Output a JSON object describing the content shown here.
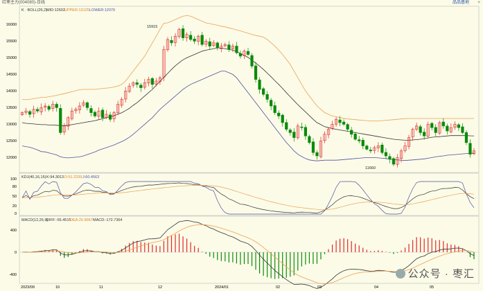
{
  "window": {
    "title": "红枣主力(004080)-日线",
    "right_link": "品品基地",
    "close_glyph": "×"
  },
  "boll_panel": {
    "legend": {
      "name": "K · BOLL(26,2)",
      "mid": "MID:12602",
      "upper": "UPPER:13125",
      "lower": "LOWER:12079"
    },
    "y_ticks": [
      "16000",
      "15500",
      "15000",
      "14500",
      "14000",
      "13500",
      "13000",
      "12500",
      "12000"
    ],
    "annotations": {
      "high": "15915",
      "low": "11660"
    }
  },
  "kdj_panel": {
    "legend": {
      "name": "KDJ(40,16,16)",
      "k": "K:94.3013",
      "d": "D:51.2239",
      "j": "J:60.4563"
    },
    "y_ticks": [
      "100",
      "80",
      "50",
      "20",
      "0"
    ]
  },
  "macd_panel": {
    "legend": {
      "name": "MACD(12,26,9)",
      "diff": "DIFF:-55.4515",
      "dea": "DEA:20.9067",
      "macd": "MACD:-172.7364"
    },
    "y_ticks": [
      "400",
      "0",
      "-400"
    ]
  },
  "x_axis": {
    "labels": [
      "2023/09",
      "10",
      "11",
      "12",
      "2024/01",
      "02",
      "03",
      "04",
      "05"
    ]
  },
  "watermark": "公众号 · 枣汇",
  "colors": {
    "up": "#e02828",
    "down": "#0a8a0a",
    "mid": "#333333",
    "upper": "#f0a050",
    "lower": "#5050a0",
    "bg": "#fbfbe8"
  },
  "chart_data": {
    "type": "candlestick",
    "y_range": [
      11600,
      16200
    ],
    "highlights": {
      "high": 15915,
      "low": 11660
    },
    "close_series": [
      13300,
      13350,
      13250,
      13400,
      13350,
      13450,
      13500,
      13400,
      13550,
      13450,
      12700,
      12900,
      13150,
      13350,
      13400,
      13500,
      13600,
      13450,
      13300,
      13200,
      13350,
      13150,
      13250,
      13100,
      13300,
      13550,
      13700,
      13950,
      14100,
      14200,
      14150,
      14050,
      14200,
      14300,
      14150,
      14250,
      14350,
      15200,
      15500,
      15400,
      15600,
      15800,
      15550,
      15650,
      15500,
      15450,
      15600,
      15350,
      15450,
      15300,
      15400,
      15250,
      15300,
      15350,
      15200,
      15300,
      15100,
      15000,
      15150,
      15050,
      14700,
      14300,
      14000,
      13850,
      13700,
      13500,
      13300,
      13200,
      13000,
      12800,
      12700,
      12550,
      12900,
      12850,
      12600,
      12400,
      12100,
      12000,
      12450,
      12650,
      12800,
      12950,
      13100,
      13000,
      12950,
      12800,
      12650,
      12500,
      12450,
      12300,
      12200,
      12150,
      12250,
      12300,
      12100,
      12000,
      11900,
      11750,
      11950,
      12150,
      12300,
      12550,
      12800,
      12900,
      12700,
      12600,
      12950,
      12850,
      12700,
      13000,
      12900,
      12750,
      12850,
      12950,
      12850,
      12700,
      12400,
      12050,
      12150
    ],
    "boll_mid": [
      13000,
      12980,
      12970,
      12960,
      12950,
      12940,
      12940,
      12930,
      12930,
      12920,
      12910,
      12910,
      12920,
      12940,
      12960,
      12980,
      13000,
      13020,
      13040,
      13060,
      13090,
      13120,
      13150,
      13180,
      13210,
      13250,
      13300,
      13360,
      13430,
      13520,
      13600,
      13700,
      13800,
      13900,
      14000,
      14120,
      14240,
      14360,
      14480,
      14600,
      14710,
      14800,
      14890,
      14950,
      15000,
      15050,
      15100,
      15150,
      15180,
      15200,
      15220,
      15250,
      15240,
      15220,
      15200,
      15180,
      15140,
      15080,
      15020,
      14960,
      14880,
      14790,
      14700,
      14600,
      14490,
      14380,
      14260,
      14150,
      14030,
      13900,
      13780,
      13660,
      13540,
      13430,
      13320,
      13210,
      13100,
      13000,
      12940,
      12880,
      12850,
      12820,
      12800,
      12780,
      12760,
      12740,
      12720,
      12700,
      12680,
      12660,
      12640,
      12620,
      12600,
      12580,
      12560,
      12540,
      12520,
      12500,
      12490,
      12480,
      12470,
      12470,
      12480,
      12490,
      12500,
      12520,
      12540,
      12560,
      12570,
      12580,
      12590,
      12600,
      12610,
      12610,
      12610,
      12610,
      12610,
      12605,
      12602
    ],
    "boll_upper": [
      13700,
      13690,
      13700,
      13720,
      13740,
      13760,
      13760,
      13780,
      13800,
      13820,
      13850,
      13870,
      13900,
      13930,
      13960,
      13990,
      14000,
      14000,
      14000,
      14000,
      14010,
      14030,
      14040,
      14050,
      14070,
      14100,
      14150,
      14250,
      14400,
      14550,
      14700,
      14850,
      15000,
      15200,
      15400,
      15600,
      15800,
      15990,
      16000,
      16050,
      16100,
      16150,
      16200,
      16220,
      16200,
      16150,
      16100,
      16050,
      16000,
      15980,
      15950,
      15930,
      15900,
      15880,
      15850,
      15820,
      15790,
      15760,
      15720,
      15690,
      15650,
      15620,
      15600,
      15570,
      15500,
      15400,
      15300,
      15180,
      15050,
      14900,
      14750,
      14550,
      14350,
      14150,
      13950,
      13800,
      13650,
      13500,
      13400,
      13300,
      13250,
      13200,
      13180,
      13150,
      13130,
      13110,
      13100,
      13090,
      13080,
      13070,
      13060,
      13050,
      13050,
      13050,
      13060,
      13070,
      13080,
      13090,
      13100,
      13110,
      13120,
      13125,
      13125,
      13125,
      13125,
      13125,
      13125,
      13125,
      13125,
      13125,
      13125,
      13125,
      13125,
      13125,
      13125,
      13125,
      13125,
      13125,
      13125
    ],
    "boll_lower": [
      12300,
      12280,
      12260,
      12220,
      12180,
      12130,
      12120,
      12090,
      12060,
      12030,
      11970,
      11950,
      11940,
      11950,
      11960,
      11970,
      12000,
      12040,
      12080,
      12120,
      12170,
      12210,
      12250,
      12290,
      12330,
      12380,
      12430,
      12490,
      12560,
      12650,
      12750,
      12850,
      12950,
      13050,
      13150,
      13280,
      13400,
      13500,
      13600,
      13700,
      13800,
      13900,
      14000,
      14080,
      14150,
      14200,
      14250,
      14300,
      14350,
      14400,
      14450,
      14500,
      14550,
      14550,
      14500,
      14450,
      14350,
      14200,
      14050,
      13900,
      13750,
      13600,
      13450,
      13300,
      13150,
      13000,
      12850,
      12700,
      12550,
      12400,
      12280,
      12150,
      12050,
      11980,
      11920,
      11880,
      11860,
      11850,
      11860,
      11870,
      11870,
      11870,
      11870,
      11880,
      11890,
      11900,
      11910,
      11920,
      11930,
      11940,
      11950,
      11950,
      11950,
      11940,
      11930,
      11920,
      11900,
      11890,
      11880,
      11870,
      11860,
      11870,
      11880,
      11890,
      11900,
      11910,
      11930,
      11950,
      11970,
      11990,
      12000,
      12020,
      12030,
      12040,
      12050,
      12060,
      12070,
      12079,
      12079
    ]
  }
}
